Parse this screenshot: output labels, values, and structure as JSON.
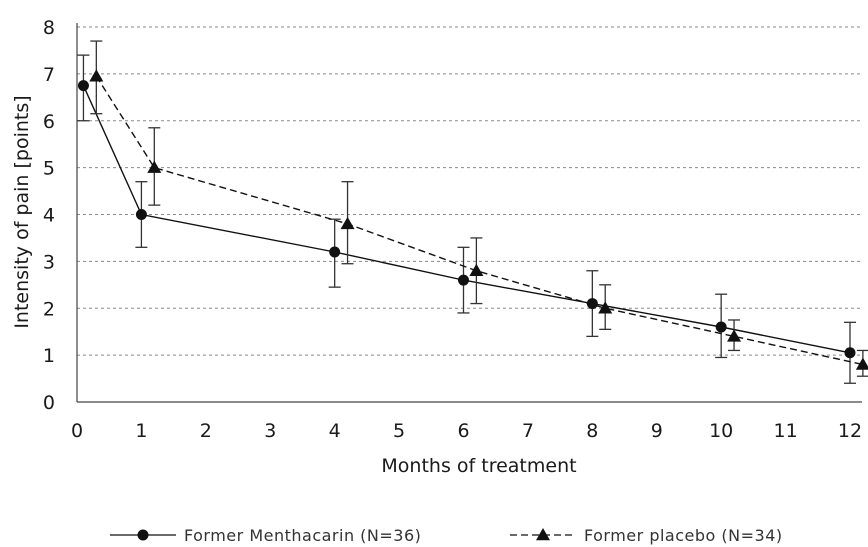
{
  "chart_data": {
    "type": "line",
    "xlabel": "Months of treatment",
    "ylabel": "Intensity of pain [points]",
    "xlim": [
      0,
      12
    ],
    "ylim": [
      0,
      8
    ],
    "x_ticks": [
      0,
      1,
      2,
      3,
      4,
      5,
      6,
      7,
      8,
      9,
      10,
      11,
      12
    ],
    "y_ticks": [
      0,
      1,
      2,
      3,
      4,
      5,
      6,
      7,
      8
    ],
    "grid": "horizontal dashed",
    "legend_position": "bottom",
    "series": [
      {
        "name": "Former Menthacarin (N=36)",
        "marker": "circle",
        "line_style": "solid",
        "x": [
          0.1,
          1,
          4,
          6,
          8,
          10,
          12
        ],
        "y": [
          6.75,
          4.0,
          3.2,
          2.6,
          2.1,
          1.6,
          1.05
        ],
        "err_low": [
          6.0,
          3.3,
          2.45,
          1.9,
          1.4,
          0.95,
          0.4
        ],
        "err_high": [
          7.4,
          4.7,
          3.9,
          3.3,
          2.8,
          2.3,
          1.7
        ]
      },
      {
        "name": "Former placebo (N=34)",
        "marker": "triangle",
        "line_style": "dashed",
        "x": [
          0.3,
          1.2,
          4.2,
          6.2,
          8.2,
          10.2,
          12.2
        ],
        "y": [
          6.95,
          5.0,
          3.8,
          2.8,
          2.0,
          1.4,
          0.8
        ],
        "err_low": [
          6.15,
          4.2,
          2.95,
          2.1,
          1.55,
          1.1,
          0.55
        ],
        "err_high": [
          7.7,
          5.85,
          4.7,
          3.5,
          2.5,
          1.75,
          1.1
        ]
      }
    ]
  }
}
